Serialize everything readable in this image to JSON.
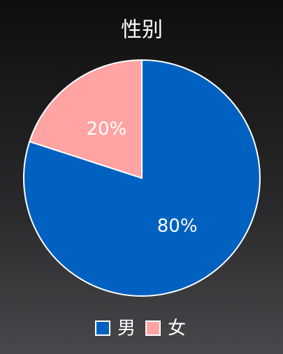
{
  "chart_data": {
    "type": "pie",
    "title": "性别",
    "categories": [
      "男",
      "女"
    ],
    "values": [
      80,
      20
    ],
    "value_labels": [
      "80%",
      "20%"
    ],
    "colors": [
      "#0061c1",
      "#ffa3a3"
    ],
    "legend": "bottom"
  }
}
